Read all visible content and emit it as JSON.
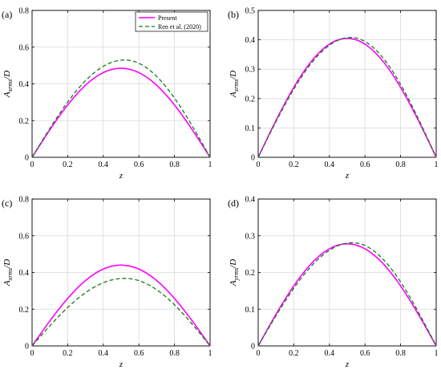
{
  "legend": {
    "present": "Present",
    "ren": "Ren et al. (2020)"
  },
  "colors": {
    "present": "#ff00ff",
    "ren": "#1a7a1a",
    "grid": "#d9d9d9"
  },
  "chart_data": [
    {
      "type": "line",
      "panel_label": "(a)",
      "xlabel": "z",
      "ylabel_main": "A",
      "ylabel_sub": "xrms",
      "ylabel_tail": "/D",
      "xlim": [
        0,
        1
      ],
      "ylim": [
        0,
        0.8
      ],
      "xticks": [
        "0",
        "0.2",
        "0.4",
        "0.6",
        "0.8",
        "1"
      ],
      "yticks": [
        "0",
        "0.2",
        "0.4",
        "0.6",
        "0.8"
      ],
      "grid": true,
      "legend_position": "top-right",
      "series": [
        {
          "name": "Present",
          "peak_z": 0.5,
          "peak": 0.485,
          "x": [
            0,
            0.1,
            0.2,
            0.3,
            0.4,
            0.5,
            0.6,
            0.7,
            0.8,
            0.9,
            1
          ],
          "y": [
            0,
            0.15,
            0.285,
            0.392,
            0.461,
            0.485,
            0.461,
            0.392,
            0.285,
            0.15,
            0
          ]
        },
        {
          "name": "Ren et al. (2020)",
          "peak_z": 0.52,
          "peak": 0.53,
          "x": [
            0,
            0.1,
            0.2,
            0.3,
            0.4,
            0.5,
            0.6,
            0.7,
            0.8,
            0.9,
            1
          ],
          "y": [
            0,
            0.163,
            0.31,
            0.427,
            0.502,
            0.529,
            0.502,
            0.427,
            0.31,
            0.163,
            0
          ]
        }
      ]
    },
    {
      "type": "line",
      "panel_label": "(b)",
      "xlabel": "z",
      "ylabel_main": "A",
      "ylabel_sub": "xrms",
      "ylabel_tail": "/D",
      "xlim": [
        0,
        1
      ],
      "ylim": [
        0,
        0.5
      ],
      "xticks": [
        "0",
        "0.2",
        "0.4",
        "0.6",
        "0.8",
        "1"
      ],
      "yticks": [
        "0",
        "0.1",
        "0.2",
        "0.3",
        "0.4",
        "0.5"
      ],
      "grid": true,
      "series": [
        {
          "name": "Present",
          "peak_z": 0.5,
          "peak": 0.405,
          "x": [
            0,
            0.1,
            0.2,
            0.3,
            0.4,
            0.5,
            0.6,
            0.7,
            0.8,
            0.9,
            1
          ],
          "y": [
            0,
            0.125,
            0.238,
            0.328,
            0.385,
            0.405,
            0.385,
            0.328,
            0.238,
            0.125,
            0
          ]
        },
        {
          "name": "Ren et al. (2020)",
          "peak_z": 0.52,
          "peak": 0.408,
          "x": [
            0,
            0.1,
            0.2,
            0.3,
            0.4,
            0.5,
            0.6,
            0.7,
            0.8,
            0.9,
            1
          ],
          "y": [
            0,
            0.14,
            0.255,
            0.343,
            0.395,
            0.408,
            0.394,
            0.345,
            0.26,
            0.14,
            0
          ]
        }
      ]
    },
    {
      "type": "line",
      "panel_label": "(c)",
      "xlabel": "z",
      "ylabel_main": "A",
      "ylabel_sub": "xrms",
      "ylabel_tail": "/D",
      "xlim": [
        0,
        1
      ],
      "ylim": [
        0,
        0.8
      ],
      "xticks": [
        "0",
        "0.2",
        "0.4",
        "0.6",
        "0.8",
        "1"
      ],
      "yticks": [
        "0",
        "0.2",
        "0.4",
        "0.6",
        "0.8"
      ],
      "grid": true,
      "series": [
        {
          "name": "Present",
          "peak_z": 0.5,
          "peak": 0.44,
          "x": [
            0,
            0.1,
            0.2,
            0.3,
            0.4,
            0.5,
            0.6,
            0.7,
            0.8,
            0.9,
            1
          ],
          "y": [
            0,
            0.136,
            0.259,
            0.356,
            0.418,
            0.44,
            0.418,
            0.356,
            0.259,
            0.136,
            0
          ]
        },
        {
          "name": "Ren et al. (2020)",
          "peak_z": 0.52,
          "peak": 0.368,
          "x": [
            0,
            0.1,
            0.2,
            0.3,
            0.4,
            0.5,
            0.6,
            0.7,
            0.8,
            0.9,
            1
          ],
          "y": [
            0,
            0.11,
            0.212,
            0.293,
            0.348,
            0.368,
            0.35,
            0.297,
            0.216,
            0.114,
            0
          ]
        }
      ]
    },
    {
      "type": "line",
      "panel_label": "(d)",
      "xlabel": "z",
      "ylabel_main": "A",
      "ylabel_sub": "yrms",
      "ylabel_tail": "/D",
      "xlim": [
        0,
        1
      ],
      "ylim": [
        0,
        0.4
      ],
      "xticks": [
        "0",
        "0.2",
        "0.4",
        "0.6",
        "0.8",
        "1"
      ],
      "yticks": [
        "0",
        "0.1",
        "0.2",
        "0.3",
        "0.4"
      ],
      "grid": true,
      "series": [
        {
          "name": "Present",
          "peak_z": 0.5,
          "peak": 0.278,
          "x": [
            0,
            0.1,
            0.2,
            0.3,
            0.4,
            0.5,
            0.6,
            0.7,
            0.8,
            0.9,
            1
          ],
          "y": [
            0,
            0.086,
            0.163,
            0.225,
            0.264,
            0.278,
            0.264,
            0.225,
            0.163,
            0.086,
            0
          ]
        },
        {
          "name": "Ren et al. (2020)",
          "peak_z": 0.53,
          "peak": 0.281,
          "x": [
            0,
            0.1,
            0.2,
            0.3,
            0.4,
            0.5,
            0.6,
            0.7,
            0.8,
            0.9,
            1
          ],
          "y": [
            0,
            0.082,
            0.157,
            0.218,
            0.26,
            0.279,
            0.278,
            0.24,
            0.179,
            0.096,
            0
          ]
        }
      ]
    }
  ]
}
